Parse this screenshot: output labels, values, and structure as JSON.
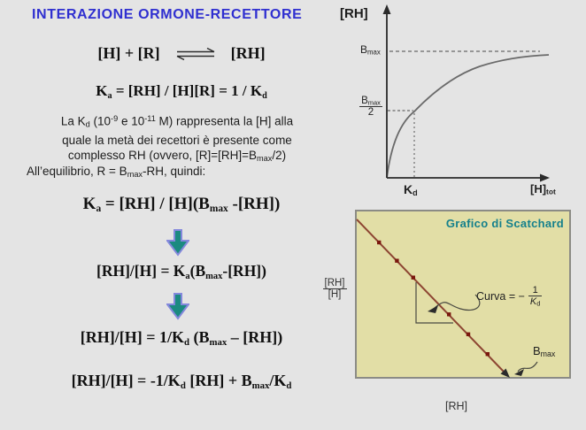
{
  "colors": {
    "background": "#e4e4e4",
    "title_blue": "#2f2fd0",
    "arrow_fill": "#1b8a80",
    "arrow_stroke": "#8488dc",
    "axis_dark": "#2b2b2b",
    "curve_gray": "#6a6a6a",
    "scatchard_bg": "#e2dea6",
    "scatchard_border": "#8b8b85",
    "scatchard_title_teal": "#15808c",
    "scatchard_line": "#8d4532",
    "scatchard_marker": "#7a170e"
  },
  "title": "INTERAZIONE ORMONE-RECETTORE",
  "left": {
    "reaction": {
      "left": "[H] + [R]",
      "right": "[RH]"
    },
    "ka_equation": [
      {
        "v": "K"
      },
      {
        "s": "sub",
        "v": "a"
      },
      {
        "v": " = [RH] / [H][R] = 1 / K"
      },
      {
        "s": "sub",
        "v": "d"
      }
    ],
    "paragraph": {
      "line1": [
        {
          "v": "La K"
        },
        {
          "s": "sub",
          "v": "d"
        },
        {
          "v": " (10"
        },
        {
          "s": "sup",
          "v": "-9"
        },
        {
          "v": " e 10"
        },
        {
          "s": "sup",
          "v": "-11"
        },
        {
          "v": " M) rappresenta la [H] alla"
        }
      ],
      "line2": [
        {
          "v": "quale la metà dei recettori è presente come"
        }
      ],
      "line3": [
        {
          "v": "complesso RH (ovvero, [R]=[RH]=B"
        },
        {
          "s": "sub",
          "v": "max"
        },
        {
          "v": "/2)"
        }
      ]
    },
    "equilibrio_line": [
      {
        "v": "All’equilibrio, R = B"
      },
      {
        "s": "sub",
        "v": "max"
      },
      {
        "v": "-RH, quindi:"
      }
    ],
    "formula1": [
      {
        "v": "K"
      },
      {
        "s": "sub",
        "v": "a"
      },
      {
        "v": " = [RH] / [H](B"
      },
      {
        "s": "sub",
        "v": "max"
      },
      {
        "v": " -[RH])"
      }
    ],
    "formula2": [
      {
        "v": "[RH]/[H] = K"
      },
      {
        "s": "sub",
        "v": "a"
      },
      {
        "v": "(B"
      },
      {
        "s": "sub",
        "v": "max"
      },
      {
        "v": "-[RH])"
      }
    ],
    "formula3": [
      {
        "v": "[RH]/[H] = 1/K"
      },
      {
        "s": "sub",
        "v": "d"
      },
      {
        "v": " (B"
      },
      {
        "s": "sub",
        "v": "max"
      },
      {
        "v": " – [RH])"
      }
    ],
    "formula4": [
      {
        "v": "[RH]/[H] = -1/K"
      },
      {
        "s": "sub",
        "v": "d"
      },
      {
        "v": " [RH] + B"
      },
      {
        "s": "sub",
        "v": "max"
      },
      {
        "v": "/K"
      },
      {
        "s": "sub",
        "v": "d"
      }
    ]
  },
  "saturation_chart": {
    "y_axis_label": "[RH]",
    "x_axis_label": [
      {
        "v": "[H]"
      },
      {
        "s": "sub",
        "v": "tot"
      }
    ],
    "bmax_label": [
      {
        "v": "B"
      },
      {
        "s": "sub",
        "v": "max"
      }
    ],
    "bmax_half": {
      "numerator": [
        {
          "v": "B"
        },
        {
          "s": "sub",
          "v": "max"
        }
      ],
      "denominator": "2"
    },
    "kd_label": [
      {
        "v": "K"
      },
      {
        "s": "sub",
        "v": "d"
      }
    ]
  },
  "scatchard": {
    "title": "Grafico di  Scatchard",
    "y_fraction": {
      "numerator": "[RH]",
      "denominator": "[H]"
    },
    "x_axis_label": "[RH]",
    "slope_annotation": {
      "prefix": "Curva = −",
      "fraction": {
        "numerator": "1",
        "denominator": [
          {
            "s": "i",
            "v": "K"
          },
          {
            "s": "sub",
            "v": "d"
          }
        ]
      }
    },
    "bmax_annotation": [
      {
        "v": "B"
      },
      {
        "s": "sub",
        "v": "max"
      }
    ]
  },
  "chart_data": [
    {
      "type": "line",
      "title": "",
      "xlabel": "[H]tot",
      "ylabel": "[RH]",
      "curve": "hyperbolic saturation binding curve rising from origin and plateauing at Bmax",
      "asymptote": "Bmax (horizontal dashed line)",
      "half_max_point": {
        "x": "Kd",
        "y": "Bmax/2",
        "shown_with": "dashed/dotted guide lines"
      },
      "axis_numeric": false,
      "annotations": [
        "Bmax",
        "Bmax/2",
        "Kd"
      ]
    },
    {
      "type": "scatter",
      "title": "Grafico di  Scatchard",
      "xlabel": "[RH]",
      "ylabel": "[RH]/[H]",
      "trend": "straight line with negative slope from upper-left to x-axis intercept",
      "slope_label": "Curva = -1/Kd",
      "x_intercept_label": "Bmax",
      "points_t": [
        0.15,
        0.27,
        0.38,
        0.62,
        0.75,
        0.88
      ]
    }
  ]
}
